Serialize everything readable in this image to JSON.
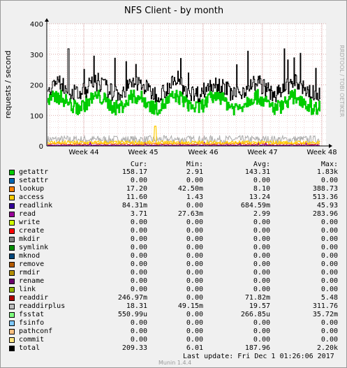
{
  "chart_data": {
    "type": "line",
    "title": "NFS Client - by month",
    "ylabel": "requests / second",
    "ylim": [
      0,
      400
    ],
    "yticks": [
      0,
      100,
      200,
      300,
      400
    ],
    "xticks": [
      "Week 44",
      "Week 45",
      "Week 46",
      "Week 47",
      "Week 48"
    ],
    "grid": true,
    "watermark": "RRDTOOL / TOBI OETIKER",
    "series_approx": [
      {
        "name": "total",
        "color": "#000000",
        "typical": 188,
        "min": 100,
        "max": 318
      },
      {
        "name": "getattr",
        "color": "#00cc00",
        "typical": 143,
        "min": 75,
        "max": 192
      },
      {
        "name": "readdirplus",
        "color": "#aaaaaa",
        "typical": 20,
        "min": 0,
        "max": 38
      },
      {
        "name": "access",
        "color": "#ffcc00",
        "typical": 13,
        "min": 0,
        "max": 65
      },
      {
        "name": "lookup",
        "color": "#ff8000",
        "typical": 8,
        "min": 0,
        "max": 18
      },
      {
        "name": "read",
        "color": "#990099",
        "typical": 3,
        "min": 0,
        "max": 14
      }
    ]
  },
  "legend": {
    "headers": {
      "cur": "Cur:",
      "min": "Min:",
      "avg": "Avg:",
      "max": "Max:"
    },
    "rows": [
      {
        "name": "getattr",
        "color": "#00cc00",
        "cur": "158.17",
        "min": "2.91",
        "avg": "143.31",
        "max": "1.83k"
      },
      {
        "name": "setattr",
        "color": "#0066b3",
        "cur": "0.00",
        "min": "0.00",
        "avg": "0.00",
        "max": "0.00"
      },
      {
        "name": "lookup",
        "color": "#ff8000",
        "cur": "17.20",
        "min": "42.50m",
        "avg": "8.10",
        "max": "388.73"
      },
      {
        "name": "access",
        "color": "#ffcc00",
        "cur": "11.60",
        "min": "1.43",
        "avg": "13.24",
        "max": "513.36"
      },
      {
        "name": "readlink",
        "color": "#330099",
        "cur": "84.31m",
        "min": "0.00",
        "avg": "684.59m",
        "max": "45.93"
      },
      {
        "name": "read",
        "color": "#990099",
        "cur": "3.71",
        "min": "27.63m",
        "avg": "2.99",
        "max": "283.96"
      },
      {
        "name": "write",
        "color": "#ccff00",
        "cur": "0.00",
        "min": "0.00",
        "avg": "0.00",
        "max": "0.00"
      },
      {
        "name": "create",
        "color": "#ff0000",
        "cur": "0.00",
        "min": "0.00",
        "avg": "0.00",
        "max": "0.00"
      },
      {
        "name": "mkdir",
        "color": "#808080",
        "cur": "0.00",
        "min": "0.00",
        "avg": "0.00",
        "max": "0.00"
      },
      {
        "name": "symlink",
        "color": "#008f00",
        "cur": "0.00",
        "min": "0.00",
        "avg": "0.00",
        "max": "0.00"
      },
      {
        "name": "mknod",
        "color": "#00487d",
        "cur": "0.00",
        "min": "0.00",
        "avg": "0.00",
        "max": "0.00"
      },
      {
        "name": "remove",
        "color": "#b35a00",
        "cur": "0.00",
        "min": "0.00",
        "avg": "0.00",
        "max": "0.00"
      },
      {
        "name": "rmdir",
        "color": "#b38f00",
        "cur": "0.00",
        "min": "0.00",
        "avg": "0.00",
        "max": "0.00"
      },
      {
        "name": "rename",
        "color": "#6b006b",
        "cur": "0.00",
        "min": "0.00",
        "avg": "0.00",
        "max": "0.00"
      },
      {
        "name": "link",
        "color": "#8fb300",
        "cur": "0.00",
        "min": "0.00",
        "avg": "0.00",
        "max": "0.00"
      },
      {
        "name": "readdir",
        "color": "#b30000",
        "cur": "246.97m",
        "min": "0.00",
        "avg": "71.82m",
        "max": "5.48"
      },
      {
        "name": "readdirplus",
        "color": "#bebebe",
        "cur": "18.31",
        "min": "49.15m",
        "avg": "19.57",
        "max": "311.76"
      },
      {
        "name": "fsstat",
        "color": "#80ff80",
        "cur": "550.99u",
        "min": "0.00",
        "avg": "266.85u",
        "max": "35.72m"
      },
      {
        "name": "fsinfo",
        "color": "#80c9ff",
        "cur": "0.00",
        "min": "0.00",
        "avg": "0.00",
        "max": "0.00"
      },
      {
        "name": "pathconf",
        "color": "#ffc080",
        "cur": "0.00",
        "min": "0.00",
        "avg": "0.00",
        "max": "0.00"
      },
      {
        "name": "commit",
        "color": "#ffe680",
        "cur": "0.00",
        "min": "0.00",
        "avg": "0.00",
        "max": "0.00"
      },
      {
        "name": "total",
        "color": "#000000",
        "cur": "209.33",
        "min": "6.01",
        "avg": "187.96",
        "max": "2.20k"
      }
    ]
  },
  "footer": {
    "last_update": "Last update:  Fri Dec  1 01:26:06 2017",
    "munin": "Munin 1.4.4"
  }
}
